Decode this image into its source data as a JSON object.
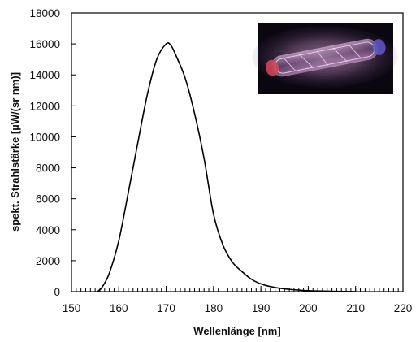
{
  "chart_data": {
    "type": "line",
    "xlabel": "Wellenlänge [nm]",
    "ylabel": "spekt. Strahlstärke [µW/(sr nm)]",
    "xlim": [
      150,
      220
    ],
    "ylim": [
      0,
      18000
    ],
    "x_ticks": [
      150,
      160,
      170,
      180,
      190,
      200,
      210,
      220
    ],
    "y_ticks": [
      0,
      2000,
      4000,
      6000,
      8000,
      10000,
      12000,
      14000,
      16000,
      18000
    ],
    "x_tick_labels": [
      "150",
      "160",
      "170",
      "180",
      "190",
      "200",
      "210",
      "220"
    ],
    "y_tick_labels": [
      "0",
      "2000",
      "4000",
      "6000",
      "8000",
      "10000",
      "12000",
      "14000",
      "16000",
      "18000"
    ],
    "x_minor_step": 1,
    "grid": false,
    "series": [
      {
        "color": "#000000",
        "x": [
          155.5,
          156.5,
          158,
          160,
          162,
          164,
          166,
          168,
          170,
          171,
          172,
          174,
          176,
          178,
          180,
          182,
          184,
          186,
          188,
          190,
          192,
          194,
          196,
          198,
          200,
          203,
          206,
          210
        ],
        "y": [
          0,
          300,
          1200,
          3300,
          6400,
          9600,
          12700,
          15000,
          16000,
          15900,
          15300,
          13800,
          11500,
          8600,
          5000,
          3000,
          1900,
          1300,
          800,
          500,
          330,
          220,
          150,
          100,
          60,
          35,
          20,
          0
        ]
      }
    ]
  },
  "inset_image": {
    "depicts": "glowing-excimer-lamp-tube-photo",
    "background": "#0a0710",
    "glow_color": "#c88ec8"
  }
}
